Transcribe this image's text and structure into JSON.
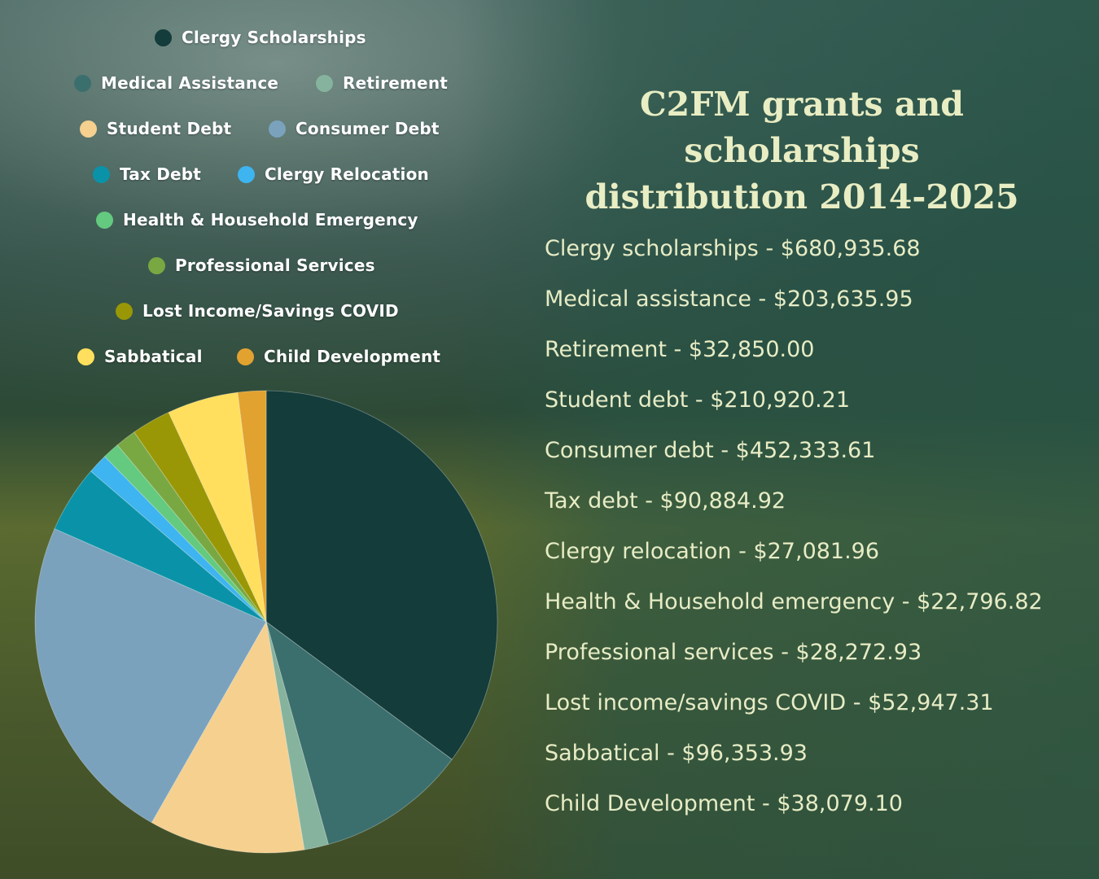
{
  "title": {
    "line1": "C2FM grants and scholarships",
    "line2": "distribution 2014-2025"
  },
  "legend": [
    {
      "label": "Clergy Scholarships",
      "color": "#133c3b"
    },
    {
      "label": "Medical Assistance",
      "color": "#3b6f6e"
    },
    {
      "label": "Retirement",
      "color": "#86b39d"
    },
    {
      "label": "Student Debt",
      "color": "#f5d08f"
    },
    {
      "label": "Consumer Debt",
      "color": "#7ba2bd"
    },
    {
      "label": "Tax Debt",
      "color": "#0a93a8"
    },
    {
      "label": "Clergy Relocation",
      "color": "#3eb4f0"
    },
    {
      "label": "Health & Household Emergency",
      "color": "#63ca7f"
    },
    {
      "label": "Professional Services",
      "color": "#79a843"
    },
    {
      "label": "Lost Income/Savings COVID",
      "color": "#9a9706"
    },
    {
      "label": "Sabbatical",
      "color": "#ffdf5d"
    },
    {
      "label": "Child Development",
      "color": "#e2a22f"
    }
  ],
  "values_list": [
    "Clergy scholarships - $680,935.68",
    "Medical assistance - $203,635.95",
    "Retirement - $32,850.00",
    "Student debt - $210,920.21",
    "Consumer debt - $452,333.61",
    "Tax debt - $90,884.92",
    "Clergy relocation - $27,081.96",
    "Health & Household emergency - $22,796.82",
    "Professional services - $28,272.93",
    "Lost income/savings COVID - $52,947.31",
    "Sabbatical - $96,353.93",
    "Child Development - $38,079.10"
  ],
  "chart_data": {
    "type": "pie",
    "title": "C2FM grants and scholarships distribution 2014-2025",
    "legend_position": "top-left",
    "categories": [
      "Clergy Scholarships",
      "Medical Assistance",
      "Retirement",
      "Student Debt",
      "Consumer Debt",
      "Tax Debt",
      "Clergy Relocation",
      "Health & Household Emergency",
      "Professional Services",
      "Lost Income/Savings COVID",
      "Sabbatical",
      "Child Development"
    ],
    "values": [
      680935.68,
      203635.95,
      32850.0,
      210920.21,
      452333.61,
      90884.92,
      27081.96,
      22796.82,
      28272.93,
      52947.31,
      96353.93,
      38079.1
    ],
    "colors": [
      "#133c3b",
      "#3b6f6e",
      "#86b39d",
      "#f5d08f",
      "#7ba2bd",
      "#0a93a8",
      "#3eb4f0",
      "#63ca7f",
      "#79a843",
      "#9a9706",
      "#ffdf5d",
      "#e2a22f"
    ]
  }
}
